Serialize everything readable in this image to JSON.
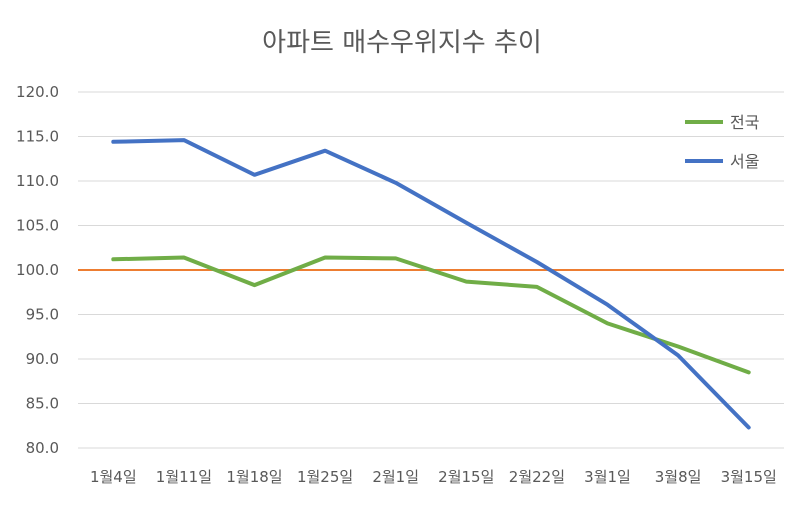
{
  "chart_data": {
    "type": "line",
    "title": "아파트 매수우위지수 추이",
    "xlabel": "",
    "ylabel": "",
    "categories": [
      "1월4일",
      "1월11일",
      "1월18일",
      "1월25일",
      "2월1일",
      "2월15일",
      "2월22일",
      "3월1일",
      "3월8일",
      "3월15일"
    ],
    "series": [
      {
        "name": "전국",
        "color": "#70ad47",
        "values": [
          101.2,
          101.4,
          98.3,
          101.4,
          101.3,
          98.7,
          98.1,
          94.0,
          91.4,
          88.5
        ]
      },
      {
        "name": "서울",
        "color": "#4472c4",
        "values": [
          114.4,
          114.6,
          110.7,
          113.4,
          109.8,
          105.3,
          100.9,
          96.1,
          90.4,
          82.3
        ]
      }
    ],
    "reference_line": {
      "value": 100.0,
      "color": "#ed7d31"
    },
    "ylim": [
      80,
      120
    ],
    "yticks": [
      "80.0",
      "85.0",
      "90.0",
      "95.0",
      "100.0",
      "105.0",
      "110.0",
      "115.0",
      "120.0"
    ],
    "grid": true,
    "legend_position": "top-right"
  }
}
